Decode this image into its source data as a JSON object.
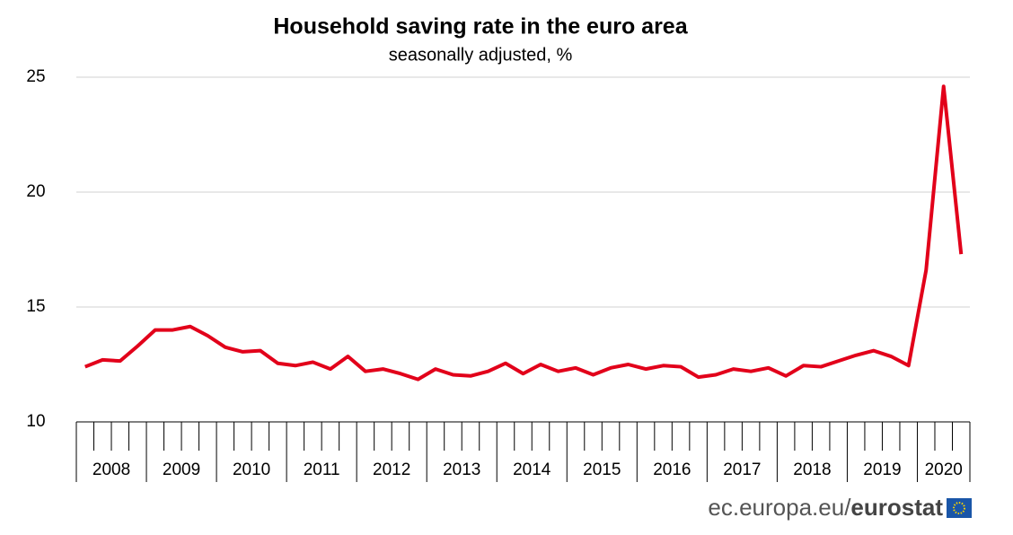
{
  "chart_data": {
    "type": "line",
    "title": "Household saving rate in the euro area",
    "subtitle": "seasonally adjusted, %",
    "categories": [
      "2008",
      "2008",
      "2008",
      "2008",
      "2009",
      "2009",
      "2009",
      "2009",
      "2010",
      "2010",
      "2010",
      "2010",
      "2011",
      "2011",
      "2011",
      "2011",
      "2012",
      "2012",
      "2012",
      "2012",
      "2013",
      "2013",
      "2013",
      "2013",
      "2014",
      "2014",
      "2014",
      "2014",
      "2015",
      "2015",
      "2015",
      "2015",
      "2016",
      "2016",
      "2016",
      "2016",
      "2017",
      "2017",
      "2017",
      "2017",
      "2018",
      "2018",
      "2018",
      "2018",
      "2019",
      "2019",
      "2019",
      "2019",
      "2020",
      "2020",
      "2020"
    ],
    "values": [
      12.4,
      12.7,
      12.65,
      13.3,
      14.0,
      14.0,
      14.15,
      13.75,
      13.25,
      13.05,
      13.1,
      12.55,
      12.45,
      12.6,
      12.3,
      12.85,
      12.2,
      12.3,
      12.1,
      11.85,
      12.3,
      12.05,
      12.0,
      12.2,
      12.55,
      12.1,
      12.5,
      12.2,
      12.35,
      12.05,
      12.35,
      12.5,
      12.3,
      12.45,
      12.4,
      11.95,
      12.05,
      12.3,
      12.2,
      12.35,
      12.0,
      12.45,
      12.4,
      12.65,
      12.9,
      13.1,
      12.85,
      12.45,
      16.6,
      24.6,
      17.3
    ],
    "color": "#e2001a",
    "ylim": [
      10,
      25
    ],
    "yticks": [
      10,
      15,
      20,
      25
    ],
    "grid": true,
    "source": "ec.europa.eu/",
    "source_brand": "eurostat"
  }
}
